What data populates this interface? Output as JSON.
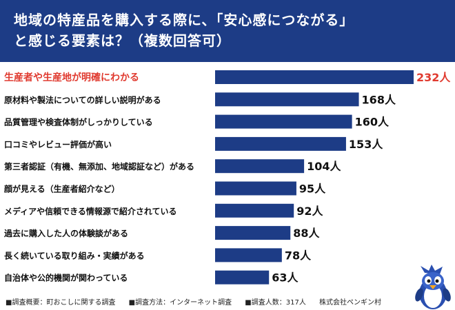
{
  "title": {
    "line1": "地域の特産品を購入する際に、「安心感につながる」",
    "line2": "と感じる要素は？（複数回答可）"
  },
  "chart_data": {
    "type": "bar",
    "orientation": "horizontal",
    "categories": [
      "生産者や生産地が明確にわかる",
      "原材料や製法についての詳しい説明がある",
      "品質管理や検査体制がしっかりしている",
      "口コミやレビュー評価が高い",
      "第三者認証（有機、無添加、地域認証など）がある",
      "顔が見える（生産者紹介など）",
      "メディアや信頼できる情報源で紹介されている",
      "過去に購入した人の体験談がある",
      "長く続いている取り組み・実績がある",
      "自治体や公的機関が関わっている"
    ],
    "values": [
      232,
      168,
      160,
      153,
      104,
      95,
      92,
      88,
      78,
      63
    ],
    "value_labels": [
      "232人",
      "168人",
      "160人",
      "153人",
      "104人",
      "95人",
      "92人",
      "88人",
      "78人",
      "63人"
    ],
    "highlight_index": 0,
    "xlim": [
      0,
      232
    ],
    "grid": false,
    "colors": {
      "bar": "#1d3c86",
      "highlight_text": "#e03a2f",
      "text": "#111111"
    }
  },
  "footer": {
    "survey_overview": "■調査概要：町おこしに関する調査",
    "survey_method": "■調査方法：インターネット調査",
    "respondents": "■調査人数：317人",
    "company": "株式会社ペンギン村"
  },
  "mascot": {
    "icon": "penguin-mascot-icon"
  }
}
